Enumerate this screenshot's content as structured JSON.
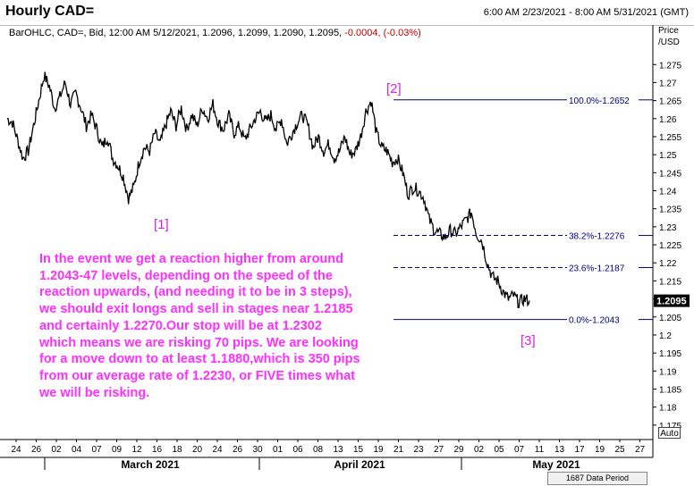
{
  "header": {
    "title": "Hourly CAD=",
    "date_range": "6:00 AM 2/23/2021 - 8:00 AM 5/31/2021 (GMT)",
    "info_main": "BarOHLC, CAD=, Bid, 12:00 AM 5/12/2021, 1.2096, 1.2099, 1.2090, 1.2095,",
    "info_change": " -0.0004, (-0.03%)",
    "price_axis_title_1": "Price",
    "price_axis_title_2": "/USD"
  },
  "annotation": {
    "text": "In the event we get a reaction higher from around 1.2043-47 levels,  depending on the speed of the reaction upwards, (and needing it to be in 3 steps), we should exit longs and sell in stages near 1.2185 and certainly 1.2270.Our stop will be at 1.2302 which means we are risking 70 pips. We are looking for a move down to at least 1.1880,which is 350 pips from our average rate of 1.2230, or FIVE times what we will be risking."
  },
  "controls": {
    "auto_label": "Auto",
    "status_text": "1687 Data Period"
  },
  "chart_data": {
    "type": "ohlc",
    "instrument": "CAD=",
    "timeframe": "Hourly",
    "last_price": "1.2095",
    "y_range": [
      1.171,
      1.282
    ],
    "y_ticks": [
      "1.275",
      "1.27",
      "1.265",
      "1.26",
      "1.255",
      "1.25",
      "1.245",
      "1.24",
      "1.235",
      "1.23",
      "1.225",
      "1.22",
      "1.215",
      "1.21",
      "1.205",
      "1.2",
      "1.195",
      "1.19",
      "1.185",
      "1.18",
      "1.175"
    ],
    "y_ticks_bold": [
      "1.25",
      "1.2"
    ],
    "x_day_labels": [
      "24",
      "26",
      "02",
      "04",
      "07",
      "09",
      "12",
      "16",
      "18",
      "20",
      "24",
      "26",
      "30",
      "01",
      "06",
      "08",
      "13",
      "15",
      "19",
      "21",
      "23",
      "27",
      "29",
      "02",
      "05",
      "07",
      "11",
      "13",
      "17",
      "19",
      "25",
      "27"
    ],
    "x_month_labels": [
      "March 2021",
      "April 2021",
      "May 2021"
    ],
    "price_path": [
      [
        0,
        1.26
      ],
      [
        1,
        1.259
      ],
      [
        2,
        1.254
      ],
      [
        3,
        1.249
      ],
      [
        4,
        1.251
      ],
      [
        5,
        1.258
      ],
      [
        6,
        1.265
      ],
      [
        7,
        1.272
      ],
      [
        8,
        1.269
      ],
      [
        9,
        1.263
      ],
      [
        10,
        1.266
      ],
      [
        11,
        1.27
      ],
      [
        12,
        1.264
      ],
      [
        13,
        1.267
      ],
      [
        14,
        1.263
      ],
      [
        15,
        1.258
      ],
      [
        16,
        1.261
      ],
      [
        17,
        1.257
      ],
      [
        18,
        1.252
      ],
      [
        19,
        1.255
      ],
      [
        20,
        1.249
      ],
      [
        21,
        1.247
      ],
      [
        22,
        1.244
      ],
      [
        23,
        1.238
      ],
      [
        24,
        1.241
      ],
      [
        25,
        1.248
      ],
      [
        26,
        1.252
      ],
      [
        27,
        1.251
      ],
      [
        28,
        1.256
      ],
      [
        29,
        1.253
      ],
      [
        30,
        1.258
      ],
      [
        31,
        1.262
      ],
      [
        32,
        1.258
      ],
      [
        33,
        1.263
      ],
      [
        34,
        1.257
      ],
      [
        35,
        1.261
      ],
      [
        36,
        1.258
      ],
      [
        37,
        1.263
      ],
      [
        38,
        1.26
      ],
      [
        39,
        1.264
      ],
      [
        40,
        1.259
      ],
      [
        41,
        1.257
      ],
      [
        42,
        1.261
      ],
      [
        43,
        1.256
      ],
      [
        44,
        1.258
      ],
      [
        45,
        1.254
      ],
      [
        46,
        1.257
      ],
      [
        47,
        1.26
      ],
      [
        48,
        1.262
      ],
      [
        49,
        1.259
      ],
      [
        50,
        1.261
      ],
      [
        51,
        1.257
      ],
      [
        52,
        1.26
      ],
      [
        53,
        1.253
      ],
      [
        54,
        1.256
      ],
      [
        55,
        1.259
      ],
      [
        56,
        1.261
      ],
      [
        57,
        1.258
      ],
      [
        58,
        1.252
      ],
      [
        59,
        1.255
      ],
      [
        60,
        1.251
      ],
      [
        61,
        1.253
      ],
      [
        62,
        1.249
      ],
      [
        63,
        1.251
      ],
      [
        64,
        1.255
      ],
      [
        65,
        1.25
      ],
      [
        66,
        1.251
      ],
      [
        67,
        1.255
      ],
      [
        68,
        1.262
      ],
      [
        69,
        1.265
      ],
      [
        70,
        1.256
      ],
      [
        71,
        1.252
      ],
      [
        72,
        1.251
      ],
      [
        73,
        1.248
      ],
      [
        74,
        1.249
      ],
      [
        75,
        1.245
      ],
      [
        76,
        1.239
      ],
      [
        77,
        1.241
      ],
      [
        78,
        1.24
      ],
      [
        79,
        1.238
      ],
      [
        80,
        1.232
      ],
      [
        81,
        1.229
      ],
      [
        82,
        1.228
      ],
      [
        83,
        1.227
      ],
      [
        84,
        1.229
      ],
      [
        85,
        1.228
      ],
      [
        86,
        1.23
      ],
      [
        87,
        1.232
      ],
      [
        88,
        1.234
      ],
      [
        89,
        1.228
      ],
      [
        90,
        1.226
      ],
      [
        91,
        1.22
      ],
      [
        92,
        1.216
      ],
      [
        93,
        1.215
      ],
      [
        94,
        1.212
      ],
      [
        95,
        1.21
      ],
      [
        96,
        1.211
      ],
      [
        97,
        1.209
      ],
      [
        98,
        1.21
      ],
      [
        99,
        1.2095
      ]
    ],
    "fib_levels": [
      {
        "label": "100.0%-1.2652",
        "price": 1.2652,
        "style": "solid"
      },
      {
        "label": "38.2%-1.2276",
        "price": 1.2276,
        "style": "dashed"
      },
      {
        "label": "23.6%-1.2187",
        "price": 1.2187,
        "style": "dashed"
      },
      {
        "label": "0.0%-1.2043",
        "price": 1.2043,
        "style": "solid"
      }
    ],
    "wave_labels": [
      "[1]",
      "[2]",
      "[3]"
    ],
    "colors": {
      "price": "#000000",
      "fib": "#000080",
      "wave_label": "#e020e0",
      "note": "#ff30ff",
      "change": "#c00000"
    }
  }
}
